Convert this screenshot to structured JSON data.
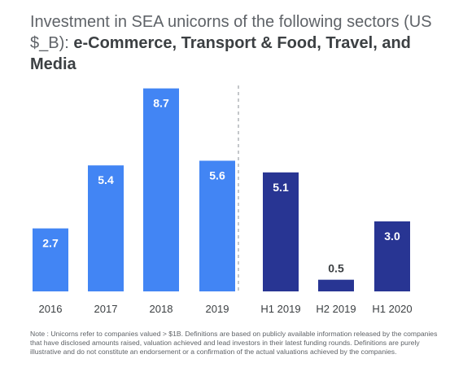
{
  "title": {
    "prefix": "Investment in SEA unicorns of the following sectors (US $_B): ",
    "highlight": "e-Commerce, Transport & Food, Travel, and Media"
  },
  "note": "Note : Unicorns refer to companies valued > $1B. Definitions are based on publicly available information released by the companies that have disclosed amounts raised, valuation achieved and lead investors in their latest funding rounds. Definitions are purely illustrative and do not constitute an endorsement or a confirmation of the actual valuations achieved by the companies.",
  "chart_data": {
    "type": "bar",
    "categories": [
      "2016",
      "2017",
      "2018",
      "2019",
      "H1 2019",
      "H2 2019",
      "H1 2020"
    ],
    "values": [
      2.7,
      5.4,
      8.7,
      5.6,
      5.1,
      0.5,
      3.0
    ],
    "value_labels": [
      "2.7",
      "5.4",
      "8.7",
      "5.6",
      "5.1",
      "0.5",
      "3.0"
    ],
    "groups": [
      {
        "categories": [
          "2016",
          "2017",
          "2018",
          "2019"
        ],
        "color": "#4285f4"
      },
      {
        "categories": [
          "H1 2019",
          "H2 2019",
          "H1 2020"
        ],
        "color": "#283593"
      }
    ],
    "divider": "dashed line between 2019 and H1 2019",
    "grid": false,
    "ylim": [
      0,
      9.0
    ]
  }
}
